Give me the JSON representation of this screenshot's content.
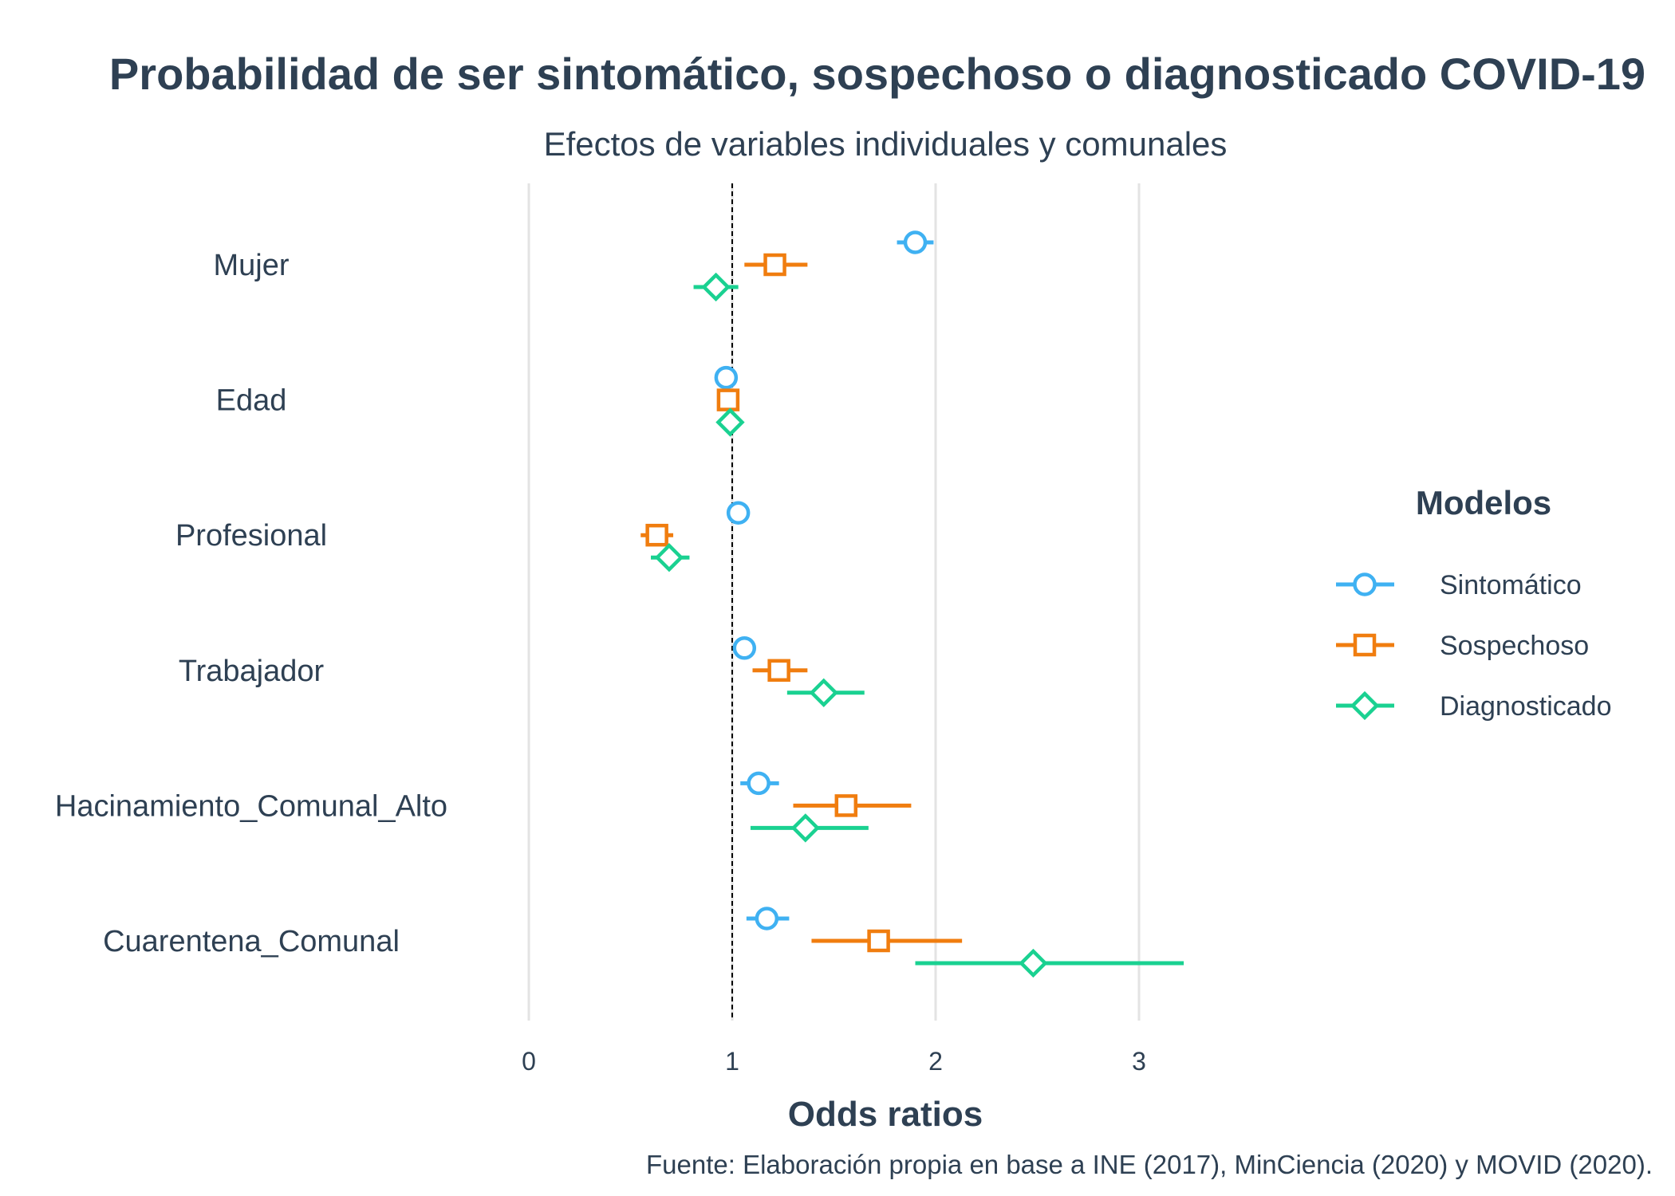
{
  "chart_data": {
    "type": "scatter",
    "title": "Probabilidad de ser sintomático, sospechoso o diagnosticado COVID-19",
    "subtitle": "Efectos de variables individuales y comunales",
    "xlabel": "Odds ratios",
    "caption": "Fuente: Elaboración propia en base a INE (2017), MinCiencia (2020) y MOVID (2020).",
    "xlim": [
      0,
      3.5
    ],
    "x_ticks": [
      "0",
      "1",
      "2",
      "3"
    ],
    "x_tick_values": [
      0,
      1,
      2,
      3
    ],
    "reference_line": 1,
    "grid": true,
    "legend_title": "Modelos",
    "legend_position": "right",
    "categories": [
      "Mujer",
      "Edad",
      "Profesional",
      "Trabajador",
      "Hacinamiento_Comunal_Alto",
      "Cuarentena_Comunal"
    ],
    "series": [
      {
        "name": "Sintomático",
        "color": "#3fb1f2",
        "marker": "circle",
        "estimates": [
          1.9,
          0.97,
          1.03,
          1.06,
          1.13,
          1.17
        ],
        "lower": [
          1.81,
          0.95,
          0.99,
          1.02,
          1.04,
          1.07
        ],
        "upper": [
          1.99,
          0.99,
          1.07,
          1.1,
          1.23,
          1.28
        ]
      },
      {
        "name": "Sospechoso",
        "color": "#f07d0f",
        "marker": "square",
        "estimates": [
          1.21,
          0.98,
          0.63,
          1.23,
          1.56,
          1.72
        ],
        "lower": [
          1.06,
          0.96,
          0.55,
          1.1,
          1.3,
          1.39
        ],
        "upper": [
          1.37,
          1.0,
          0.71,
          1.37,
          1.88,
          2.13
        ]
      },
      {
        "name": "Diagnosticado",
        "color": "#1ad191",
        "marker": "diamond",
        "estimates": [
          0.92,
          0.99,
          0.69,
          1.45,
          1.36,
          2.48
        ],
        "lower": [
          0.81,
          0.97,
          0.6,
          1.27,
          1.09,
          1.9
        ],
        "upper": [
          1.03,
          1.01,
          0.79,
          1.65,
          1.67,
          3.22
        ]
      }
    ]
  }
}
